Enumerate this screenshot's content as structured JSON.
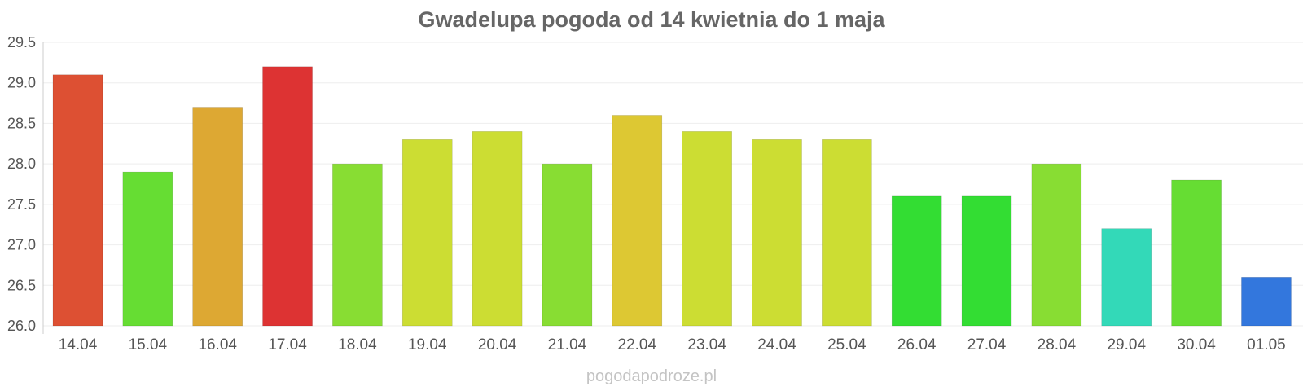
{
  "chart_data": {
    "type": "bar",
    "title": "Gwadelupa pogoda od 14 kwietnia do 1 maja",
    "xlabel": "",
    "ylabel": "",
    "ylim": [
      26.0,
      29.5
    ],
    "yticks": [
      "26.0",
      "26.5",
      "27.0",
      "27.5",
      "28.0",
      "28.5",
      "29.0",
      "29.5"
    ],
    "grid": true,
    "legend": "none",
    "categories": [
      "14.04",
      "15.04",
      "16.04",
      "17.04",
      "18.04",
      "19.04",
      "20.04",
      "21.04",
      "22.04",
      "23.04",
      "24.04",
      "25.04",
      "26.04",
      "27.04",
      "28.04",
      "29.04",
      "30.04",
      "01.05"
    ],
    "values": [
      29.1,
      27.9,
      28.7,
      29.2,
      28.0,
      28.3,
      28.4,
      28.0,
      28.6,
      28.4,
      28.3,
      28.3,
      27.6,
      27.6,
      28.0,
      27.2,
      27.8,
      26.6
    ],
    "colors": [
      "#dd5033",
      "#66dd33",
      "#dda833",
      "#dd3333",
      "#88dd33",
      "#ccdd33",
      "#ccdd33",
      "#88dd33",
      "#ddc833",
      "#ccdd33",
      "#ccdd33",
      "#ccdd33",
      "#33dd33",
      "#33dd33",
      "#88dd33",
      "#33d9b8",
      "#66dd33",
      "#3377dd"
    ]
  },
  "footer": {
    "watermark": "pogodapodroze.pl"
  }
}
